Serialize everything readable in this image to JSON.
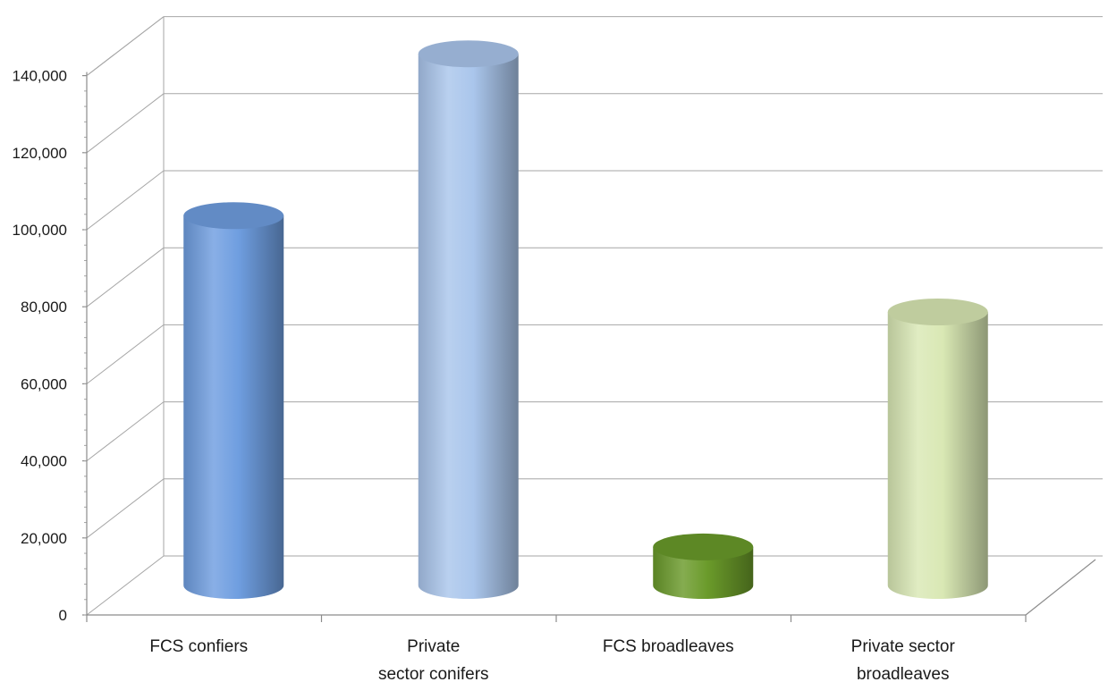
{
  "chart_data": {
    "type": "bar",
    "style": "3d-cylinder",
    "categories": [
      [
        "FCS confiers"
      ],
      [
        "Private",
        "sector conifers"
      ],
      [
        "FCS broadleaves"
      ],
      [
        "Private sector",
        "broadleaves"
      ]
    ],
    "values": [
      96000,
      138000,
      10000,
      71000
    ],
    "colors": [
      "#6f9ee0",
      "#aac6ec",
      "#6a9a2a",
      "#d9e8b4"
    ],
    "ylim": [
      0,
      140000
    ],
    "y_ticks": [
      "0",
      "20,000",
      "40,000",
      "60,000",
      "80,000",
      "100,000",
      "120,000",
      "140,000"
    ],
    "grid": true,
    "title": "",
    "xlabel": "",
    "ylabel": ""
  }
}
